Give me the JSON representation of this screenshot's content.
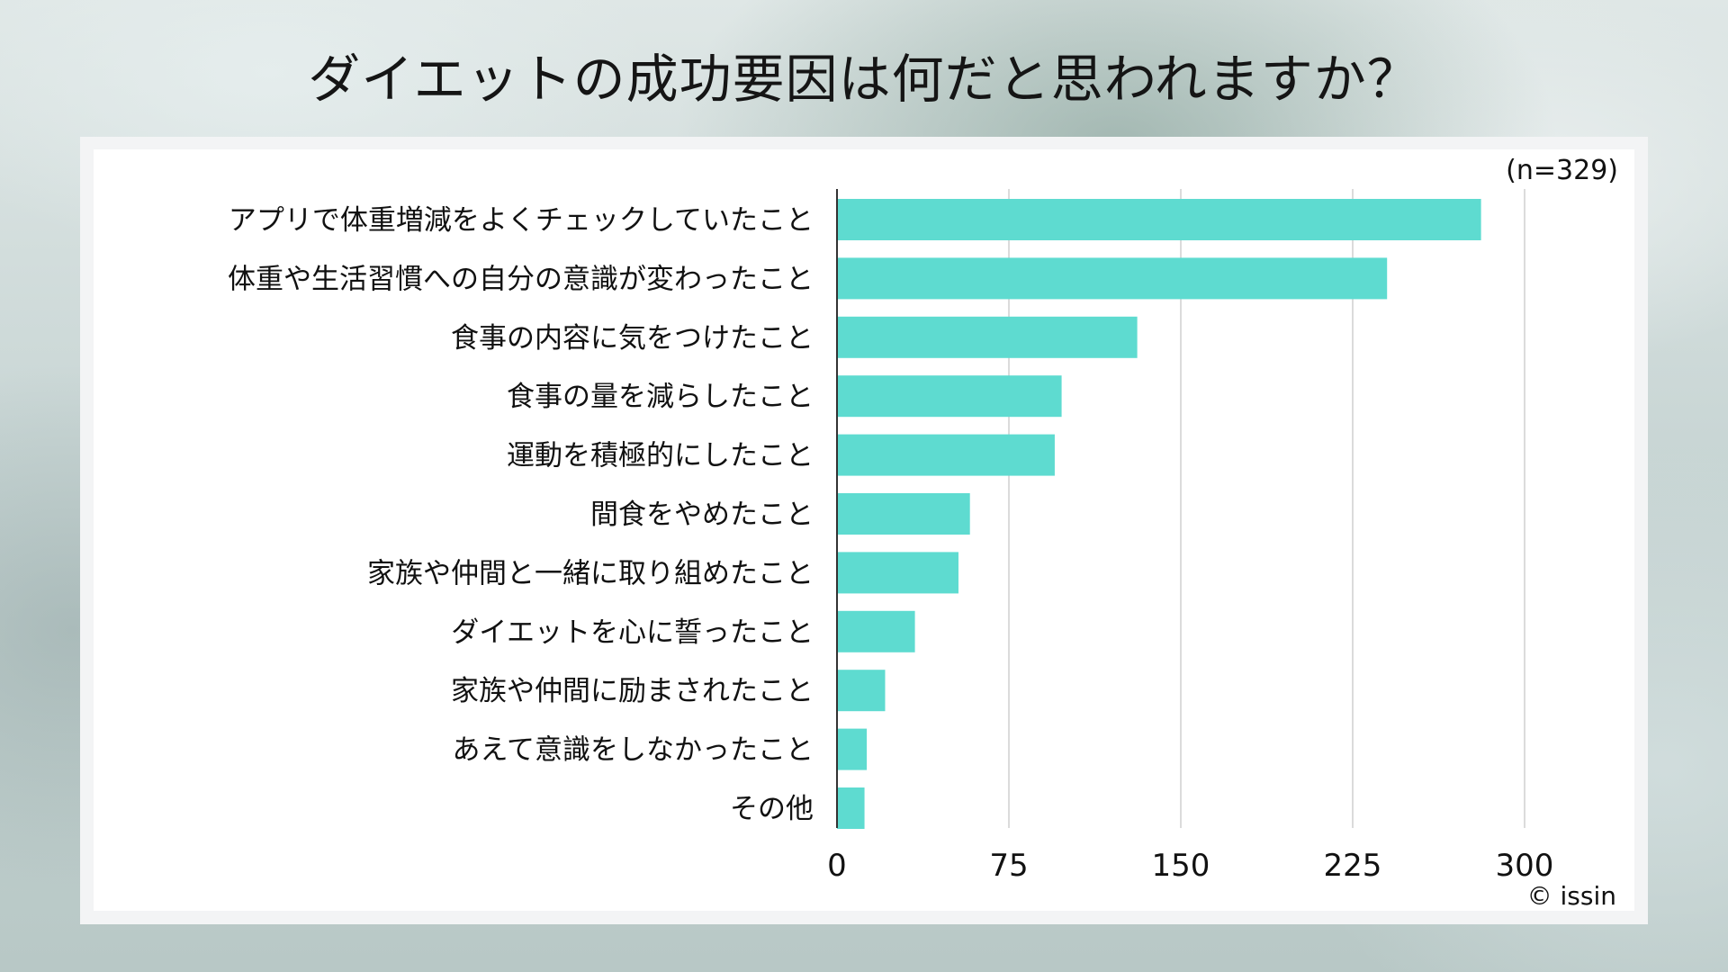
{
  "title": "ダイエットの成功要因は何だと思われますか？",
  "sample_note": "(n=329)",
  "credit": "© issin",
  "colors": {
    "bar": "#5edbd0",
    "grid": "#cfcfcf",
    "axis": "#333333"
  },
  "chart_data": {
    "type": "bar",
    "orientation": "horizontal",
    "title": "ダイエットの成功要因は何だと思われますか？",
    "categories": [
      "アプリで体重増減をよくチェックしていたこと",
      "体重や生活習慣への自分の意識が変わったこと",
      "食事の内容に気をつけたこと",
      "食事の量を減らしたこと",
      "運動を積極的にしたこと",
      "間食をやめたこと",
      "家族や仲間と一緒に取り組めたこと",
      "ダイエットを心に誓ったこと",
      "家族や仲間に励まされたこと",
      "あえて意識をしなかったこと",
      "その他"
    ],
    "values": [
      281,
      240,
      131,
      98,
      95,
      58,
      53,
      34,
      21,
      13,
      12
    ],
    "xlim": [
      0,
      330
    ],
    "xticks": [
      0,
      75,
      150,
      225,
      300
    ],
    "xtick_labels": [
      "0",
      "75",
      "150",
      "225",
      "300"
    ],
    "grid": "vertical",
    "xlabel": "",
    "ylabel": ""
  }
}
